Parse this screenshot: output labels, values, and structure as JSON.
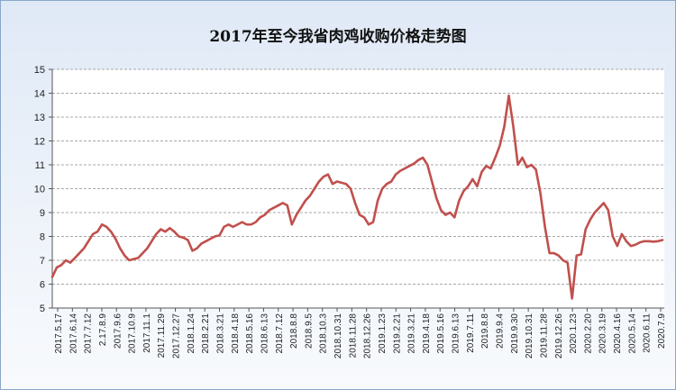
{
  "chart_data": {
    "type": "line",
    "title": "2017年至今我省肉鸡收购价格走势图",
    "xlabel": "",
    "ylabel": "",
    "ylim": [
      5,
      15
    ],
    "yticks": [
      5,
      6,
      7,
      8,
      9,
      10,
      11,
      12,
      13,
      14,
      15
    ],
    "grid": true,
    "legend": "none",
    "line_color": "#c0504d",
    "x_tick_labels": [
      "2017.5.17",
      "2017.6.14",
      "2017.7.12",
      "2.17.8.9",
      "2017.9.6",
      "2017.10.9",
      "2017.11.1",
      "2017.11.29",
      "2017.12.27",
      "2018.1.24",
      "2018.2.21",
      "2018.3.21",
      "2018.4.18",
      "2018.5.16",
      "2018.6.13",
      "2018.7.12",
      "2018.8.8",
      "2018.9.5",
      "2018.10.3",
      "2018.10.31",
      "2018.11.28",
      "2018.12.26",
      "2019.1.23",
      "2019.2.21",
      "2019.3.21",
      "2019.4.18",
      "2019.5.16",
      "2019.6.13",
      "2019.7.11",
      "2019.8.8",
      "2019.9.4",
      "2019.9.30",
      "2019.10.31",
      "2019.11.28",
      "2019.12.26",
      "2020.1.23",
      "2020.2.20",
      "2020.3.19",
      "2020.4.16",
      "2020.5.14",
      "2020.6.11",
      "2020.7.9"
    ],
    "series": [
      {
        "values": [
          6.3,
          6.7,
          6.8,
          7.0,
          6.9,
          7.1,
          7.3,
          7.5,
          7.8,
          8.1,
          8.2,
          8.5,
          8.4,
          8.2,
          7.9,
          7.5,
          7.2,
          7.0,
          7.05,
          7.1,
          7.3,
          7.5,
          7.8,
          8.1,
          8.3,
          8.2,
          8.35,
          8.2,
          8.0,
          7.95,
          7.85,
          7.4,
          7.5,
          7.7,
          7.8,
          7.9,
          8.0,
          8.05,
          8.4,
          8.5,
          8.4,
          8.5,
          8.6,
          8.5,
          8.5,
          8.6,
          8.8,
          8.9,
          9.1,
          9.2,
          9.3,
          9.4,
          9.3,
          8.5,
          8.9,
          9.2,
          9.5,
          9.7,
          10.0,
          10.3,
          10.5,
          10.6,
          10.2,
          10.3,
          10.25,
          10.2,
          10.0,
          9.4,
          8.9,
          8.8,
          8.5,
          8.6,
          9.5,
          10.0,
          10.2,
          10.3,
          10.6,
          10.75,
          10.85,
          10.95,
          11.05,
          11.2,
          11.3,
          11.0,
          10.3,
          9.6,
          9.1,
          8.9,
          9.0,
          8.8,
          9.5,
          9.9,
          10.1,
          10.4,
          10.1,
          10.7,
          10.95,
          10.85,
          11.3,
          11.8,
          12.6,
          13.9,
          12.6,
          11.0,
          11.3,
          10.9,
          11.0,
          10.8,
          9.8,
          8.4,
          7.3,
          7.3,
          7.2,
          7.0,
          6.9,
          5.4,
          7.2,
          7.25,
          8.3,
          8.7,
          9.0,
          9.2,
          9.4,
          9.1,
          8.0,
          7.6,
          8.1,
          7.8,
          7.6,
          7.65,
          7.75,
          7.8,
          7.8,
          7.78,
          7.8,
          7.85
        ]
      }
    ]
  }
}
